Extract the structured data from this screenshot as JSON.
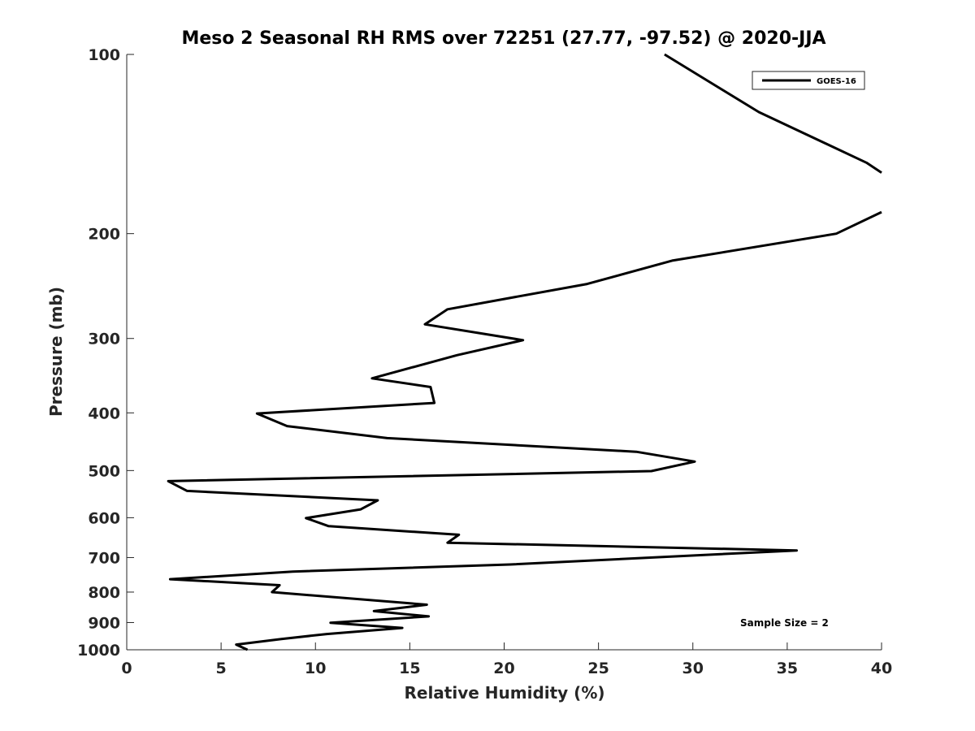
{
  "chart_data": {
    "type": "line",
    "title": "Meso 2 Seasonal RH RMS over 72251 (27.77, -97.52) @ 2020-JJA",
    "xlabel": "Relative Humidity (%)",
    "ylabel": "Pressure (mb)",
    "xlim": [
      0,
      40
    ],
    "ylim": [
      100,
      1000
    ],
    "yscale": "log-reversed",
    "xticks": [
      "0",
      "5",
      "10",
      "15",
      "20",
      "25",
      "30",
      "35",
      "40"
    ],
    "xtick_values": [
      0,
      5,
      10,
      15,
      20,
      25,
      30,
      35,
      40
    ],
    "yticks": [
      "100",
      "200",
      "300",
      "400",
      "500",
      "600",
      "700",
      "800",
      "900",
      "1000"
    ],
    "ytick_values": [
      100,
      200,
      300,
      400,
      500,
      600,
      700,
      800,
      900,
      1000
    ],
    "legend_position": "top-right",
    "annotation": "Sample Size = 2",
    "series": [
      {
        "name": "GOES-16",
        "color": "#000000",
        "segments": [
          [
            {
              "x": 28.5,
              "y": 100
            },
            {
              "x": 33.5,
              "y": 125
            },
            {
              "x": 39.2,
              "y": 152
            },
            {
              "x": 40.0,
              "y": 158
            }
          ],
          [
            {
              "x": 40.0,
              "y": 184
            },
            {
              "x": 37.6,
              "y": 200
            },
            {
              "x": 28.9,
              "y": 222
            },
            {
              "x": 24.4,
              "y": 243
            },
            {
              "x": 17.0,
              "y": 268
            },
            {
              "x": 15.8,
              "y": 284
            },
            {
              "x": 21.0,
              "y": 302
            },
            {
              "x": 17.5,
              "y": 320
            },
            {
              "x": 13.0,
              "y": 350
            },
            {
              "x": 16.1,
              "y": 362
            },
            {
              "x": 16.3,
              "y": 385
            },
            {
              "x": 6.9,
              "y": 401
            },
            {
              "x": 8.5,
              "y": 421
            },
            {
              "x": 13.8,
              "y": 441
            },
            {
              "x": 27.0,
              "y": 465
            },
            {
              "x": 30.1,
              "y": 483
            },
            {
              "x": 27.8,
              "y": 501
            },
            {
              "x": 2.2,
              "y": 521
            },
            {
              "x": 3.2,
              "y": 541
            },
            {
              "x": 13.3,
              "y": 561
            },
            {
              "x": 12.4,
              "y": 581
            },
            {
              "x": 9.5,
              "y": 601
            },
            {
              "x": 10.7,
              "y": 620
            },
            {
              "x": 17.6,
              "y": 641
            },
            {
              "x": 17.0,
              "y": 661
            },
            {
              "x": 35.5,
              "y": 681
            },
            {
              "x": 20.3,
              "y": 719
            },
            {
              "x": 8.8,
              "y": 739
            },
            {
              "x": 2.3,
              "y": 761
            },
            {
              "x": 8.1,
              "y": 779
            },
            {
              "x": 7.7,
              "y": 800
            },
            {
              "x": 15.9,
              "y": 840
            },
            {
              "x": 13.1,
              "y": 861
            },
            {
              "x": 16.0,
              "y": 879
            },
            {
              "x": 10.8,
              "y": 901
            },
            {
              "x": 14.6,
              "y": 919
            },
            {
              "x": 10.6,
              "y": 941
            },
            {
              "x": 8.2,
              "y": 959
            },
            {
              "x": 5.8,
              "y": 980
            },
            {
              "x": 6.4,
              "y": 1000
            }
          ]
        ]
      }
    ]
  }
}
